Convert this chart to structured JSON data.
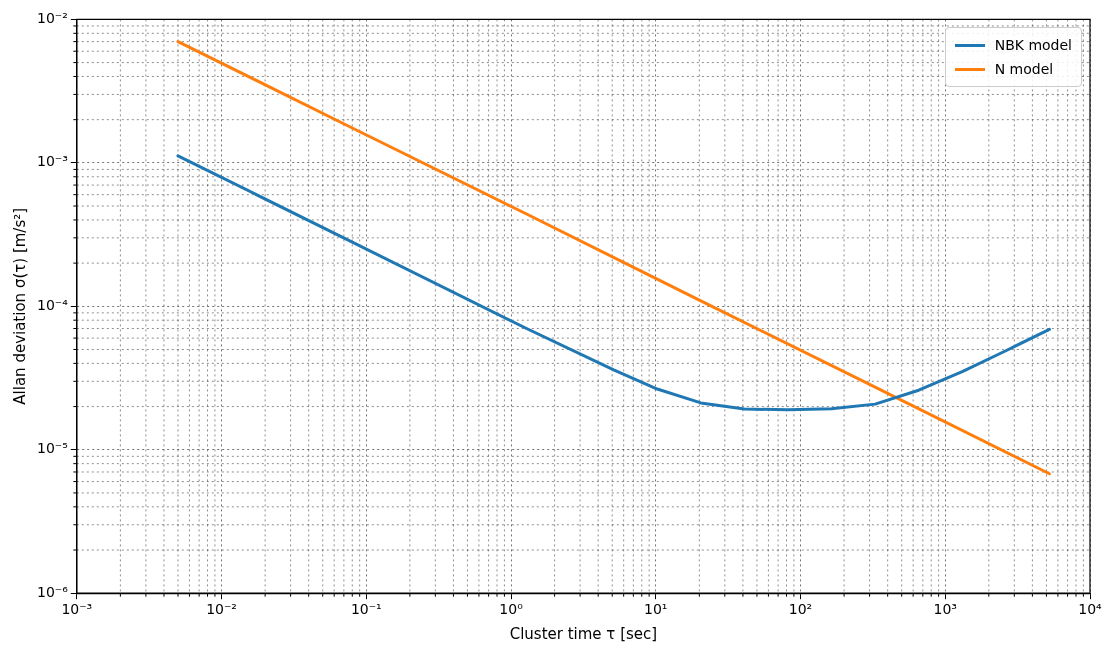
{
  "chart_data": {
    "type": "line",
    "xlabel": "Cluster time τ [sec]",
    "ylabel": "Allan deviation σ(τ) [m/s²]",
    "log": "xy",
    "grid": true,
    "legend": "top right",
    "marker": "none",
    "line_style": "solid",
    "xlim": [
      0.001,
      10000
    ],
    "ylim": [
      1e-06,
      0.01
    ],
    "xticks": [
      {
        "value": 0.001,
        "label": "10⁻³"
      },
      {
        "value": 0.01,
        "label": "10⁻²"
      },
      {
        "value": 0.1,
        "label": "10⁻¹"
      },
      {
        "value": 1,
        "label": "10⁰"
      },
      {
        "value": 10,
        "label": "10¹"
      },
      {
        "value": 100,
        "label": "10²"
      },
      {
        "value": 1000,
        "label": "10³"
      },
      {
        "value": 10000,
        "label": "10⁴"
      }
    ],
    "yticks": [
      {
        "value": 1e-06,
        "label": "10⁻⁶"
      },
      {
        "value": 1e-05,
        "label": "10⁻⁵"
      },
      {
        "value": 0.0001,
        "label": "10⁻⁴"
      },
      {
        "value": 0.001,
        "label": "10⁻³"
      },
      {
        "value": 0.01,
        "label": "10⁻²"
      }
    ],
    "series": [
      {
        "name": "NBK model",
        "color": "#1f77b4",
        "x": [
          0.005,
          0.08,
          1.28,
          5.12,
          10.24,
          20.48,
          40.96,
          81.92,
          163.84,
          327.68,
          655.36,
          1310.72,
          2621.44,
          5242.88
        ],
        "values": [
          0.00112,
          0.00028,
          7e-05,
          3.6e-05,
          2.65e-05,
          2.12e-05,
          1.92e-05,
          1.9e-05,
          1.93e-05,
          2.08e-05,
          2.6e-05,
          3.5e-05,
          4.9e-05,
          6.9e-05
        ]
      },
      {
        "name": "N model",
        "color": "#ff7f0e",
        "x": [
          0.005,
          0.08,
          1.28,
          20.48,
          327.68,
          5242.88
        ],
        "values": [
          0.007,
          0.00175,
          0.00044,
          0.000109,
          2.73e-05,
          6.8e-06
        ]
      }
    ]
  }
}
